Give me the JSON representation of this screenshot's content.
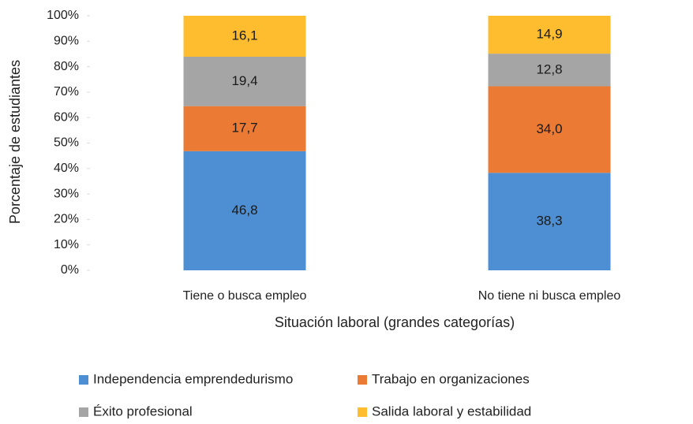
{
  "chart_data": {
    "type": "stacked_bar",
    "x_label": "Situación laboral (grandes categorías)",
    "y_label": "Porcentaje de estudiantes",
    "categories": [
      "Tiene o busca empleo",
      "No tiene ni busca empleo"
    ],
    "series": [
      {
        "name": "Independencia emprendedurismo",
        "color": "#4e8fd3",
        "values": [
          46.8,
          38.3
        ],
        "value_labels": [
          "46,8",
          "38,3"
        ]
      },
      {
        "name": "Trabajo en organizaciones",
        "color": "#eb7a35",
        "values": [
          17.7,
          34.0
        ],
        "value_labels": [
          "17,7",
          "34,0"
        ]
      },
      {
        "name": "Éxito profesional",
        "color": "#a5a5a5",
        "values": [
          19.4,
          12.8
        ],
        "value_labels": [
          "19,4",
          "12,8"
        ]
      },
      {
        "name": "Salida laboral y estabilidad",
        "color": "#fdbd2f",
        "values": [
          16.1,
          14.9
        ],
        "value_labels": [
          "16,1",
          "14,9"
        ]
      }
    ],
    "ylim": [
      0,
      100
    ],
    "yticks": [
      {
        "value": 0,
        "label": "0%"
      },
      {
        "value": 10,
        "label": "10%"
      },
      {
        "value": 20,
        "label": "20%"
      },
      {
        "value": 30,
        "label": "30%"
      },
      {
        "value": 40,
        "label": "40%"
      },
      {
        "value": 50,
        "label": "50%"
      },
      {
        "value": 60,
        "label": "60%"
      },
      {
        "value": 70,
        "label": "70%"
      },
      {
        "value": 80,
        "label": "80%"
      },
      {
        "value": 90,
        "label": "90%"
      },
      {
        "value": 100,
        "label": "100%"
      }
    ],
    "legend": "bottom"
  }
}
